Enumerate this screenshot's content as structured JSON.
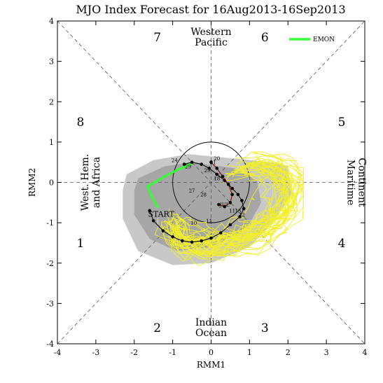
{
  "chart_data": {
    "type": "scatter",
    "title": "MJO Index Forecast for 16Aug2013-16Sep2013",
    "xlabel": "RMM1",
    "ylabel": "RMM2",
    "xlim": [
      -4,
      4
    ],
    "ylim": [
      -4,
      4
    ],
    "x_ticks": [
      "-4",
      "-3",
      "-2",
      "-1",
      "0",
      "1",
      "2",
      "3",
      "4"
    ],
    "y_ticks": [
      "-4",
      "-3",
      "-2",
      "-1",
      "0",
      "1",
      "2",
      "3",
      "4"
    ],
    "grid": false,
    "legend_position": "top-right",
    "phases": [
      {
        "label": "1",
        "x": -3.4,
        "y": -1.5
      },
      {
        "label": "2",
        "x": -1.4,
        "y": -3.6
      },
      {
        "label": "3",
        "x": 1.4,
        "y": -3.6
      },
      {
        "label": "4",
        "x": 3.4,
        "y": -1.5
      },
      {
        "label": "5",
        "x": 3.4,
        "y": 1.5
      },
      {
        "label": "6",
        "x": 1.4,
        "y": 3.6
      },
      {
        "label": "7",
        "x": -1.4,
        "y": 3.6
      },
      {
        "label": "8",
        "x": -3.4,
        "y": 1.5
      }
    ],
    "regions": {
      "top": [
        "Western",
        "Pacific"
      ],
      "bottom": [
        "Indian",
        "Ocean"
      ],
      "left": [
        "West. Hem.",
        "and Africa"
      ],
      "right": [
        "Maritime",
        "Continent"
      ]
    },
    "annotations": [
      {
        "text": "START",
        "x": -1.3,
        "y": -0.85
      }
    ],
    "series": [
      {
        "name": "EMON",
        "color": "#33ff33",
        "x": [
          -1.4,
          -1.55,
          -1.65,
          -1.2,
          -0.9,
          -0.65,
          -0.55
        ],
        "y": [
          -0.6,
          -0.35,
          -0.1,
          0.15,
          0.3,
          0.4,
          0.45
        ]
      },
      {
        "type": "observed",
        "color": "#000000",
        "x": [
          -1.6,
          -1.5,
          -1.25,
          -1.0,
          -0.75,
          -0.5,
          -0.25,
          0.0,
          0.25,
          0.5,
          0.75,
          0.85,
          0.8,
          0.7,
          0.55,
          0.35,
          0.15,
          -0.05,
          -0.25,
          -0.5,
          -0.7
        ],
        "y": [
          -0.7,
          -0.95,
          -1.2,
          -1.35,
          -1.45,
          -1.48,
          -1.45,
          -1.38,
          -1.25,
          -1.05,
          -0.85,
          -0.65,
          -0.45,
          -0.3,
          -0.15,
          0.05,
          0.2,
          0.35,
          0.45,
          0.5,
          0.45
        ]
      },
      {
        "type": "recent",
        "color": "#8b0000",
        "x": [
          0.0,
          0.15,
          0.3,
          0.45,
          0.55,
          0.5,
          0.35,
          0.2
        ],
        "y": [
          0.5,
          0.35,
          0.15,
          -0.05,
          -0.3,
          -0.5,
          -0.6,
          -0.55
        ]
      }
    ],
    "day_labels": [
      {
        "text": "24",
        "x": -0.95,
        "y": 0.5
      },
      {
        "text": "29",
        "x": -0.6,
        "y": 0.35
      },
      {
        "text": "27",
        "x": -0.5,
        "y": -0.25
      },
      {
        "text": "28",
        "x": -0.2,
        "y": -0.35
      },
      {
        "text": "29",
        "x": -0.1,
        "y": 0.25
      },
      {
        "text": "21",
        "x": 0.05,
        "y": 0.45
      },
      {
        "text": "20",
        "x": 0.15,
        "y": 0.55
      },
      {
        "text": "18",
        "x": 0.15,
        "y": 0.05
      },
      {
        "text": "JUL",
        "x": 0.35,
        "y": -0.6
      },
      {
        "text": "11",
        "x": 0.55,
        "y": -0.75
      },
      {
        "text": "13",
        "x": 0.7,
        "y": -0.75
      },
      {
        "text": "12",
        "x": 0.8,
        "y": -0.85
      },
      {
        "text": "11",
        "x": -0.05,
        "y": -1.0
      },
      {
        "text": "10",
        "x": -0.45,
        "y": -1.05
      }
    ],
    "amplitude_circle_radius": 1
  }
}
